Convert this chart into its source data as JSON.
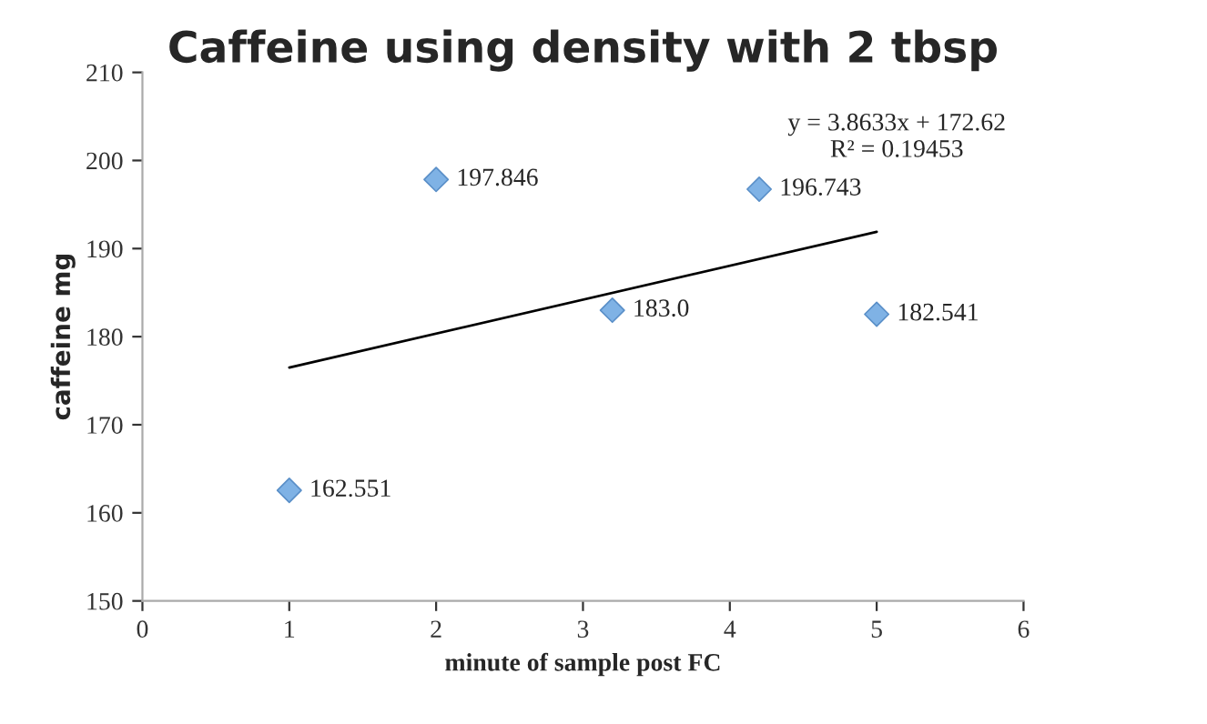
{
  "chart_data": {
    "type": "scatter",
    "title": "Caffeine using density with 2 tbsp",
    "xlabel": "minute of sample post FC",
    "ylabel": "caffeine mg",
    "series": [
      {
        "color": "#7fb2e5",
        "x": [
          1,
          2,
          3.2,
          4.2,
          5
        ],
        "values": [
          162.551,
          197.846,
          183.0,
          196.743,
          182.541
        ],
        "value_labels": [
          "162.551",
          "197.846",
          "183.0",
          "196.743",
          "182.541"
        ],
        "marker": "diamond"
      },
      {
        "type": "line",
        "color": "#000000",
        "x": [
          1,
          5
        ],
        "values": [
          176.5,
          191.9
        ],
        "marker": "none"
      }
    ],
    "annotations": [
      "y = 3.8633x + 172.62\nR² = 0.19453"
    ],
    "xlim": [
      0,
      6
    ],
    "xticks": [
      0,
      1,
      2,
      3,
      4,
      5,
      6
    ],
    "ylim": [
      150,
      210
    ],
    "yticks": [
      150,
      160,
      170,
      180,
      190,
      200,
      210
    ],
    "grid": false,
    "legend": false
  }
}
